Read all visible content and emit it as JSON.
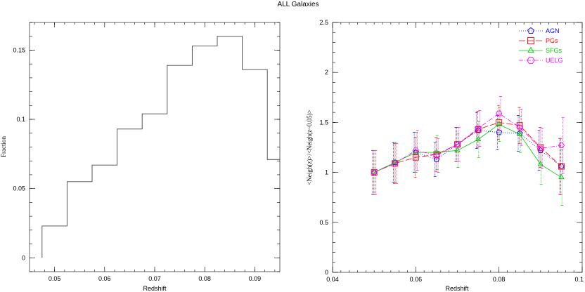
{
  "title": "ALL Galaxies",
  "chart_data": [
    {
      "type": "line",
      "subtype": "step-histogram",
      "xlabel": "Redshift",
      "ylabel": "Fraction",
      "xlim": [
        0.045,
        0.095
      ],
      "ylim": [
        -0.01,
        0.17
      ],
      "xticks": [
        0.05,
        0.06,
        0.07,
        0.08,
        0.09
      ],
      "xtick_labels": [
        "0.05",
        "0.06",
        "0.07",
        "0.08",
        "0.09"
      ],
      "yticks": [
        0,
        0.05,
        0.1,
        0.15
      ],
      "ytick_labels": [
        "0",
        "0.05",
        "0.1",
        "0.15"
      ],
      "bin_edges": [
        0.0475,
        0.0525,
        0.0575,
        0.0625,
        0.0675,
        0.0725,
        0.0775,
        0.0825,
        0.0875,
        0.0925,
        0.095
      ],
      "values": [
        0.023,
        0.055,
        0.067,
        0.093,
        0.104,
        0.139,
        0.153,
        0.16,
        0.136,
        0.071
      ],
      "color": "#000000",
      "grid": false
    },
    {
      "type": "line",
      "xlabel": "Redshift",
      "ylabel": "<Neigh(z)>/<Neigh(z~0.05)>",
      "xlim": [
        0.04,
        0.1
      ],
      "ylim": [
        0,
        2.5
      ],
      "xticks": [
        0.04,
        0.06,
        0.08,
        0.1
      ],
      "xtick_labels": [
        "0.04",
        "0.06",
        "0.08",
        "0.1"
      ],
      "yticks": [
        0,
        0.5,
        1,
        1.5,
        2,
        2.5
      ],
      "ytick_labels": [
        "0",
        "0.5",
        "1",
        "1.5",
        "2",
        "2.5"
      ],
      "legend_position": "top-right",
      "grid": false,
      "x": [
        0.05,
        0.055,
        0.06,
        0.065,
        0.07,
        0.075,
        0.08,
        0.085,
        0.09,
        0.095
      ],
      "series": [
        {
          "name": "AGN",
          "color": "#0000ff",
          "marker": "pentagon",
          "dash": "1,2",
          "values": [
            1.0,
            1.1,
            1.2,
            1.13,
            1.28,
            1.42,
            1.4,
            1.39,
            1.22,
            1.06
          ],
          "errors": [
            0.22,
            0.2,
            0.2,
            0.17,
            0.17,
            0.18,
            0.17,
            0.18,
            0.2,
            0.28
          ]
        },
        {
          "name": "PGs",
          "color": "#ff0000",
          "marker": "square",
          "dash": "9,3",
          "values": [
            1.0,
            1.09,
            1.15,
            1.18,
            1.28,
            1.43,
            1.5,
            1.47,
            1.25,
            1.06
          ],
          "errors": [
            0.22,
            0.2,
            0.2,
            0.17,
            0.17,
            0.18,
            0.17,
            0.18,
            0.2,
            0.28
          ]
        },
        {
          "name": "SFGs",
          "color": "#00cc00",
          "marker": "triangle",
          "dash": "",
          "values": [
            1.0,
            1.1,
            1.2,
            1.2,
            1.22,
            1.33,
            1.48,
            1.38,
            1.08,
            0.95
          ],
          "errors": [
            0.22,
            0.2,
            0.2,
            0.17,
            0.17,
            0.18,
            0.17,
            0.18,
            0.2,
            0.28
          ]
        },
        {
          "name": "UELG",
          "color": "#ff00ff",
          "marker": "hexagon",
          "dash": "6,2,1,2",
          "values": [
            1.0,
            1.09,
            1.22,
            1.17,
            1.28,
            1.44,
            1.59,
            1.45,
            1.24,
            1.27
          ],
          "errors": [
            0.22,
            0.2,
            0.2,
            0.17,
            0.17,
            0.18,
            0.17,
            0.18,
            0.2,
            0.28
          ]
        }
      ]
    }
  ]
}
